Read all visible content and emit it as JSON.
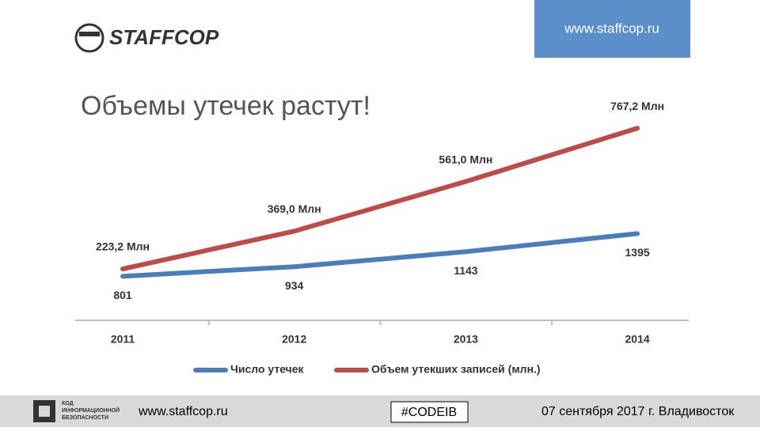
{
  "header": {
    "logo": "STAFFCOP",
    "url": "www.staffcop.ru"
  },
  "title": "Объемы утечек растут!",
  "chart_data": {
    "type": "line",
    "categories": [
      "2011",
      "2012",
      "2013",
      "2014"
    ],
    "series": [
      {
        "name": "Число утечек",
        "color": "#4a7ebb",
        "axis": "y2",
        "values": [
          801,
          934,
          1143,
          1395
        ]
      },
      {
        "name": "Объем утекших записей (млн.)",
        "color": "#be4b48",
        "values": [
          223.2,
          369.0,
          561.0,
          767.2
        ],
        "value_labels": [
          "223,2 Млн",
          "369,0 Млн",
          "561,0 Млн",
          "767,2 Млн"
        ]
      }
    ],
    "ylim": [
      0,
      1000
    ],
    "y2lim": [
      100,
      3700
    ],
    "legend": "bottom"
  },
  "footer": {
    "logo_lines": [
      "КОД",
      "ИНФОРМАЦИОННОЙ",
      "БЕЗОПАСНОСТИ"
    ],
    "url": "www.staffcop.ru",
    "hashtag": "#CODEIB",
    "event": "07 сентября 2017 г. Владивосток"
  }
}
